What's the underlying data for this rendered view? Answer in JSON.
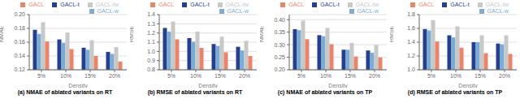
{
  "chart_data": [
    {
      "type": "bar",
      "title": "(a) NMAE of ablated variants on RT",
      "xlabel": "Density",
      "ylabel": "NMAE",
      "categories": [
        "5%",
        "10%",
        "15%",
        "20%"
      ],
      "series": [
        {
          "name": "GACL-t",
          "color": "#243f8f",
          "values": [
            0.178,
            0.164,
            0.152,
            0.146
          ]
        },
        {
          "name": "GACL-w",
          "color": "#7badd4",
          "values": [
            0.172,
            0.159,
            0.149,
            0.143
          ]
        },
        {
          "name": "GACL-tw",
          "color": "#c8c8c8",
          "values": [
            0.189,
            0.174,
            0.163,
            0.153
          ]
        },
        {
          "name": "GACL",
          "color": "#e8856a",
          "values": [
            0.161,
            0.15,
            0.14,
            0.132
          ]
        }
      ],
      "ylim": [
        0.12,
        0.2
      ],
      "yticks": [
        0.12,
        0.14,
        0.16,
        0.18,
        {
          "value": 0.2,
          "label": "0.20"
        }
      ],
      "grid": true,
      "legend": "upper right"
    },
    {
      "type": "bar",
      "title": "(b) RMSE of ablated variants on RT",
      "xlabel": "Density",
      "ylabel": "RMSE",
      "categories": [
        "5%",
        "10%",
        "15%",
        "20%"
      ],
      "series": [
        {
          "name": "GACL-t",
          "color": "#243f8f",
          "values": [
            1.255,
            1.145,
            1.08,
            1.05
          ]
        },
        {
          "name": "GACL-w",
          "color": "#7badd4",
          "values": [
            1.215,
            1.105,
            1.06,
            1.01
          ]
        },
        {
          "name": "GACL-tw",
          "color": "#c8c8c8",
          "values": [
            1.325,
            1.215,
            1.16,
            1.115
          ]
        },
        {
          "name": "GACL",
          "color": "#e8856a",
          "values": [
            1.13,
            1.038,
            0.99,
            0.95
          ]
        }
      ],
      "ylim": [
        0.8,
        1.4
      ],
      "yticks": [
        0.8,
        0.9,
        {
          "value": 1,
          "label": "1.0"
        },
        1.1,
        1.2,
        1.3,
        1.4
      ],
      "grid": true,
      "legend": "upper right"
    },
    {
      "type": "bar",
      "title": "(c) NMAE of ablated variants on TP",
      "xlabel": "Density",
      "ylabel": "NMAE",
      "categories": [
        "5%",
        "10%",
        "15%",
        "20%"
      ],
      "series": [
        {
          "name": "GACL-t",
          "color": "#243f8f",
          "values": [
            0.362,
            0.338,
            0.28,
            0.277
          ]
        },
        {
          "name": "GACL-w",
          "color": "#7badd4",
          "values": [
            0.358,
            0.334,
            0.28,
            0.268
          ]
        },
        {
          "name": "GACL-tw",
          "color": "#c8c8c8",
          "values": [
            0.396,
            0.367,
            0.307,
            0.299
          ]
        },
        {
          "name": "GACL",
          "color": "#e8856a",
          "values": [
            0.322,
            0.302,
            0.253,
            0.249
          ]
        }
      ],
      "ylim": [
        0.2,
        0.42
      ],
      "yticks": [
        {
          "value": 0.2,
          "label": "0.20"
        },
        0.25,
        {
          "value": 0.3,
          "label": "0.30"
        },
        0.35,
        {
          "value": 0.4,
          "label": "0.40"
        }
      ],
      "grid": true,
      "legend": "upper right"
    },
    {
      "type": "bar",
      "title": "(d) RMSE of ablated variants on TP",
      "xlabel": "Density",
      "ylabel": "RMSE",
      "categories": [
        "5%",
        "10%",
        "15%",
        "20%"
      ],
      "series": [
        {
          "name": "GACL-t",
          "color": "#243f8f",
          "values": [
            1.59,
            1.5,
            1.4,
            1.38
          ]
        },
        {
          "name": "GACL-w",
          "color": "#7badd4",
          "values": [
            1.57,
            1.47,
            1.4,
            1.37
          ]
        },
        {
          "name": "GACL-tw",
          "color": "#c8c8c8",
          "values": [
            1.72,
            1.63,
            1.5,
            1.5
          ]
        },
        {
          "name": "GACL",
          "color": "#e8856a",
          "values": [
            1.41,
            1.32,
            1.24,
            1.23
          ]
        }
      ],
      "ylim": [
        1,
        1.8
      ],
      "yticks": [
        {
          "value": 1,
          "label": "1.0"
        },
        1.2,
        1.4,
        1.6,
        1.8
      ],
      "grid": true,
      "legend": "upper right"
    }
  ]
}
